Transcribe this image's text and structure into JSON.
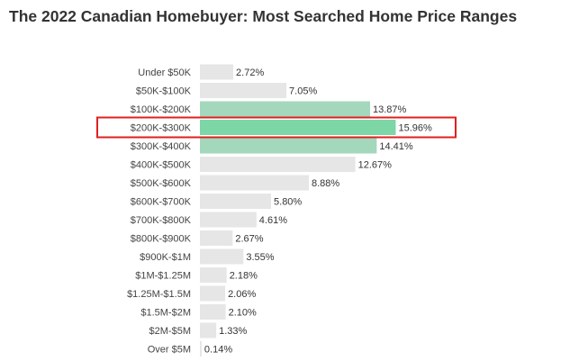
{
  "chart_data": {
    "type": "bar",
    "orientation": "horizontal",
    "title": "The 2022 Canadian Homebuyer: Most Searched Home Price Ranges",
    "categories": [
      "Under $50K",
      "$50K-$100K",
      "$100K-$200K",
      "$200K-$300K",
      "$300K-$400K",
      "$400K-$500K",
      "$500K-$600K",
      "$600K-$700K",
      "$700K-$800K",
      "$800K-$900K",
      "$900K-$1M",
      "$1M-$1.25M",
      "$1.25M-$1.5M",
      "$1.5M-$2M",
      "$2M-$5M",
      "Over $5M"
    ],
    "values": [
      2.72,
      7.05,
      13.87,
      15.96,
      14.41,
      12.67,
      8.88,
      5.8,
      4.61,
      2.67,
      3.55,
      2.18,
      2.06,
      2.1,
      1.33,
      0.14
    ],
    "value_labels": [
      "2.72%",
      "7.05%",
      "13.87%",
      "15.96%",
      "14.41%",
      "12.67%",
      "8.88%",
      "5.80%",
      "4.61%",
      "2.67%",
      "3.55%",
      "2.18%",
      "2.06%",
      "2.10%",
      "1.33%",
      "0.14%"
    ],
    "highlighted_categories": [
      "$100K-$200K",
      "$200K-$300K",
      "$300K-$400K"
    ],
    "emphasized_category": "$200K-$300K",
    "xlim": [
      0,
      16
    ],
    "colors": {
      "default_bar": "#e6e6e6",
      "highlight_bar": "#a3d8bd",
      "emphasis_bar": "#7dd6a6",
      "emphasis_outline": "#e02020"
    },
    "grid": false,
    "legend": "none"
  }
}
